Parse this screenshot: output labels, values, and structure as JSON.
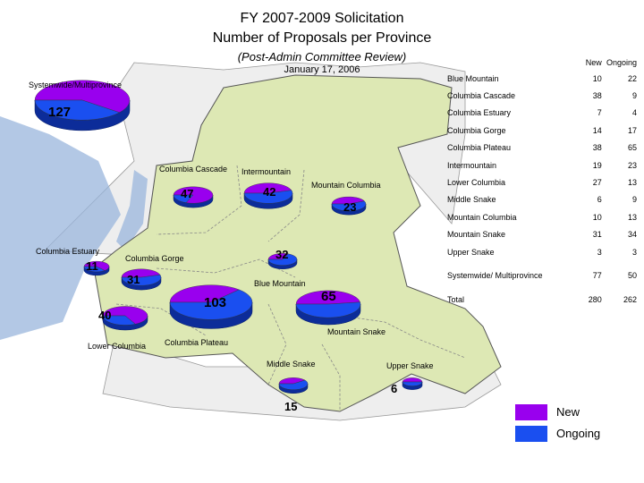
{
  "title": "FY 2007-2009 Solicitation",
  "subtitle": "Number of Proposals per Province",
  "note": "(Post-Admin Committee Review)",
  "date": "January 17, 2006",
  "colors": {
    "new": "#9900ee",
    "ongoing": "#1a4ff0",
    "region": "#dde8b4",
    "water": "#9ab6dc",
    "border": "#888888"
  },
  "legend": [
    {
      "label": "New",
      "color": "#9900ee"
    },
    {
      "label": "Ongoing",
      "color": "#1a4ff0"
    }
  ],
  "chart_data": {
    "type": "pie",
    "columns": [
      "New",
      "Ongoing"
    ],
    "provinces": [
      {
        "name": "Blue Mountain",
        "label": "Blue Mountain",
        "new": 10,
        "ongoing": 22,
        "total": 32
      },
      {
        "name": "Columbia Cascade",
        "label": "Columbia Cascade",
        "new": 38,
        "ongoing": 9,
        "total": 47
      },
      {
        "name": "Columbia Estuary",
        "label": "Columbia Estuary",
        "new": 7,
        "ongoing": 4,
        "total": 11
      },
      {
        "name": "Columbia Gorge",
        "label": "Columbia Gorge",
        "new": 14,
        "ongoing": 17,
        "total": 31
      },
      {
        "name": "Columbia Plateau",
        "label": "Columbia Plateau",
        "new": 38,
        "ongoing": 65,
        "total": 103
      },
      {
        "name": "Intermountain",
        "label": "Intermountain",
        "new": 19,
        "ongoing": 23,
        "total": 42
      },
      {
        "name": "Lower Columbia",
        "label": "Lower Columbia",
        "new": 27,
        "ongoing": 13,
        "total": 40
      },
      {
        "name": "Middle Snake",
        "label": "Middle Snake",
        "new": 6,
        "ongoing": 9,
        "total": 15
      },
      {
        "name": "Mountain Columbia",
        "label": "Mountain Columbia",
        "new": 10,
        "ongoing": 13,
        "total": 23
      },
      {
        "name": "Mountain Snake",
        "label": "Mountain Snake",
        "new": 31,
        "ongoing": 34,
        "total": 65
      },
      {
        "name": "Upper Snake",
        "label": "Upper Snake",
        "new": 3,
        "ongoing": 3,
        "total": 6
      },
      {
        "name": "Systemwide/ Multiprovince",
        "label": "Systemwide/Multiprovince",
        "new": 77,
        "ongoing": 50,
        "total": 127
      }
    ],
    "total": {
      "name": "Total",
      "new": 280,
      "ongoing": 262
    }
  }
}
